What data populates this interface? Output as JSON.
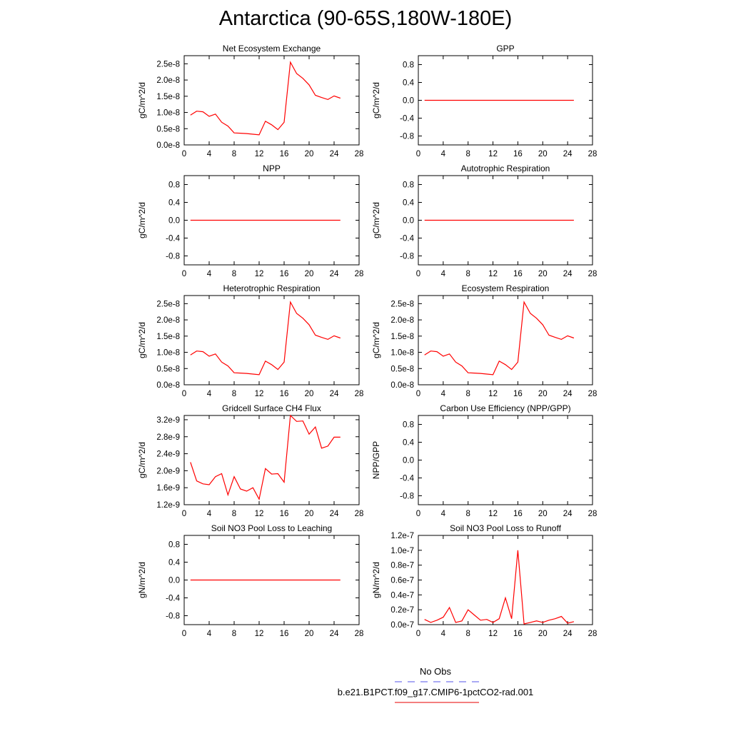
{
  "title": "Antarctica (90-65S,180W-180E)",
  "legend": [
    {
      "label": "No Obs",
      "color": "#7777ee",
      "dash": true
    },
    {
      "label": "b.e21.B1PCT.f09_g17.CMIP6-1pctCO2-rad.001",
      "color": "#ee3333",
      "dash": false
    }
  ],
  "line_color": "#ff0000",
  "chart_data": [
    {
      "type": "line",
      "title": "Net Ecosystem Exchange",
      "ylabel": "gC/m^2/d",
      "xlim": [
        0,
        28
      ],
      "xticks": [
        "0",
        "4",
        "8",
        "12",
        "16",
        "20",
        "24",
        "28"
      ],
      "ylim": [
        0,
        2.75e-08
      ],
      "yticks": [
        0,
        5e-09,
        1e-08,
        1.5e-08,
        2e-08,
        2.5e-08
      ],
      "ytick_labels": [
        "0.0e-8",
        "0.5e-8",
        "1.0e-8",
        "1.5e-8",
        "2.0e-8",
        "2.5e-8"
      ],
      "x": [
        1,
        2,
        3,
        4,
        5,
        6,
        7,
        8,
        9,
        10,
        11,
        12,
        13,
        14,
        15,
        16,
        17,
        18,
        19,
        20,
        21,
        22,
        23,
        24,
        25
      ],
      "y": [
        9.2e-09,
        1.04e-08,
        1.02e-08,
        8.8e-09,
        9.5e-09,
        7e-09,
        5.8e-09,
        3.7e-09,
        3.6e-09,
        3.5e-09,
        3.3e-09,
        3.1e-09,
        7.3e-09,
        6.2e-09,
        4.7e-09,
        7e-09,
        2.55e-08,
        2.2e-08,
        2.05e-08,
        1.85e-08,
        1.53e-08,
        1.46e-08,
        1.4e-08,
        1.51e-08,
        1.44e-08
      ]
    },
    {
      "type": "line",
      "title": "GPP",
      "ylabel": "gC/m^2/d",
      "xlim": [
        0,
        28
      ],
      "xticks": [
        "0",
        "4",
        "8",
        "12",
        "16",
        "20",
        "24",
        "28"
      ],
      "ylim": [
        -1,
        1
      ],
      "yticks": [
        -0.8,
        -0.4,
        0,
        0.4,
        0.8
      ],
      "ytick_labels": [
        "-0.8",
        "-0.4",
        "0.0",
        "0.4",
        "0.8"
      ],
      "x": [
        1,
        25
      ],
      "y": [
        0,
        0
      ]
    },
    {
      "type": "line",
      "title": "NPP",
      "ylabel": "gC/m^2/d",
      "xlim": [
        0,
        28
      ],
      "xticks": [
        "0",
        "4",
        "8",
        "12",
        "16",
        "20",
        "24",
        "28"
      ],
      "ylim": [
        -1,
        1
      ],
      "yticks": [
        -0.8,
        -0.4,
        0,
        0.4,
        0.8
      ],
      "ytick_labels": [
        "-0.8",
        "-0.4",
        "0.0",
        "0.4",
        "0.8"
      ],
      "x": [
        1,
        25
      ],
      "y": [
        0,
        0
      ]
    },
    {
      "type": "line",
      "title": "Autotrophic Respiration",
      "ylabel": "gC/m^2/d",
      "xlim": [
        0,
        28
      ],
      "xticks": [
        "0",
        "4",
        "8",
        "12",
        "16",
        "20",
        "24",
        "28"
      ],
      "ylim": [
        -1,
        1
      ],
      "yticks": [
        -0.8,
        -0.4,
        0,
        0.4,
        0.8
      ],
      "ytick_labels": [
        "-0.8",
        "-0.4",
        "0.0",
        "0.4",
        "0.8"
      ],
      "x": [
        1,
        25
      ],
      "y": [
        0,
        0
      ]
    },
    {
      "type": "line",
      "title": "Heterotrophic Respiration",
      "ylabel": "gC/m^2/d",
      "xlim": [
        0,
        28
      ],
      "xticks": [
        "0",
        "4",
        "8",
        "12",
        "16",
        "20",
        "24",
        "28"
      ],
      "ylim": [
        0,
        2.75e-08
      ],
      "yticks": [
        0,
        5e-09,
        1e-08,
        1.5e-08,
        2e-08,
        2.5e-08
      ],
      "ytick_labels": [
        "0.0e-8",
        "0.5e-8",
        "1.0e-8",
        "1.5e-8",
        "2.0e-8",
        "2.5e-8"
      ],
      "x": [
        1,
        2,
        3,
        4,
        5,
        6,
        7,
        8,
        9,
        10,
        11,
        12,
        13,
        14,
        15,
        16,
        17,
        18,
        19,
        20,
        21,
        22,
        23,
        24,
        25
      ],
      "y": [
        9.2e-09,
        1.04e-08,
        1.02e-08,
        8.8e-09,
        9.5e-09,
        7e-09,
        5.8e-09,
        3.7e-09,
        3.6e-09,
        3.5e-09,
        3.3e-09,
        3.1e-09,
        7.3e-09,
        6.2e-09,
        4.7e-09,
        7e-09,
        2.55e-08,
        2.2e-08,
        2.05e-08,
        1.85e-08,
        1.53e-08,
        1.46e-08,
        1.4e-08,
        1.51e-08,
        1.44e-08
      ]
    },
    {
      "type": "line",
      "title": "Ecosystem Respiration",
      "ylabel": "gC/m^2/d",
      "xlim": [
        0,
        28
      ],
      "xticks": [
        "0",
        "4",
        "8",
        "12",
        "16",
        "20",
        "24",
        "28"
      ],
      "ylim": [
        0,
        2.75e-08
      ],
      "yticks": [
        0,
        5e-09,
        1e-08,
        1.5e-08,
        2e-08,
        2.5e-08
      ],
      "ytick_labels": [
        "0.0e-8",
        "0.5e-8",
        "1.0e-8",
        "1.5e-8",
        "2.0e-8",
        "2.5e-8"
      ],
      "x": [
        1,
        2,
        3,
        4,
        5,
        6,
        7,
        8,
        9,
        10,
        11,
        12,
        13,
        14,
        15,
        16,
        17,
        18,
        19,
        20,
        21,
        22,
        23,
        24,
        25
      ],
      "y": [
        9.2e-09,
        1.04e-08,
        1.02e-08,
        8.8e-09,
        9.5e-09,
        7e-09,
        5.8e-09,
        3.7e-09,
        3.6e-09,
        3.5e-09,
        3.3e-09,
        3.1e-09,
        7.3e-09,
        6.2e-09,
        4.7e-09,
        7e-09,
        2.55e-08,
        2.2e-08,
        2.05e-08,
        1.85e-08,
        1.53e-08,
        1.46e-08,
        1.4e-08,
        1.51e-08,
        1.44e-08
      ]
    },
    {
      "type": "line",
      "title": "Gridcell Surface CH4 Flux",
      "ylabel": "gC/m^2/d",
      "xlim": [
        0,
        28
      ],
      "xticks": [
        "0",
        "4",
        "8",
        "12",
        "16",
        "20",
        "24",
        "28"
      ],
      "ylim": [
        1.2e-09,
        3.3e-09
      ],
      "yticks": [
        1.2e-09,
        1.6e-09,
        2e-09,
        2.4e-09,
        2.8e-09,
        3.2e-09
      ],
      "ytick_labels": [
        "1.2e-9",
        "1.6e-9",
        "2.0e-9",
        "2.4e-9",
        "2.8e-9",
        "3.2e-9"
      ],
      "x": [
        1,
        2,
        3,
        4,
        5,
        6,
        7,
        8,
        9,
        10,
        11,
        12,
        13,
        14,
        15,
        16,
        17,
        18,
        19,
        20,
        21,
        22,
        23,
        24,
        25
      ],
      "y": [
        2.2e-09,
        1.76e-09,
        1.69e-09,
        1.67e-09,
        1.86e-09,
        1.93e-09,
        1.43e-09,
        1.86e-09,
        1.57e-09,
        1.52e-09,
        1.6e-09,
        1.33e-09,
        2.05e-09,
        1.92e-09,
        1.93e-09,
        1.73e-09,
        3.3e-09,
        3.16e-09,
        3.17e-09,
        2.86e-09,
        3.03e-09,
        2.53e-09,
        2.58e-09,
        2.79e-09,
        2.79e-09
      ]
    },
    {
      "type": "line",
      "title": "Carbon Use Efficiency (NPP/GPP)",
      "ylabel": "NPP/GPP",
      "xlim": [
        0,
        28
      ],
      "xticks": [
        "0",
        "4",
        "8",
        "12",
        "16",
        "20",
        "24",
        "28"
      ],
      "ylim": [
        -1,
        1
      ],
      "yticks": [
        -0.8,
        -0.4,
        0,
        0.4,
        0.8
      ],
      "ytick_labels": [
        "-0.8",
        "-0.4",
        "0.0",
        "0.4",
        "0.8"
      ],
      "x": [],
      "y": []
    },
    {
      "type": "line",
      "title": "Soil NO3 Pool Loss to Leaching",
      "ylabel": "gN/m^2/d",
      "xlim": [
        0,
        28
      ],
      "xticks": [
        "0",
        "4",
        "8",
        "12",
        "16",
        "20",
        "24",
        "28"
      ],
      "ylim": [
        -1,
        1
      ],
      "yticks": [
        -0.8,
        -0.4,
        0,
        0.4,
        0.8
      ],
      "ytick_labels": [
        "-0.8",
        "-0.4",
        "0.0",
        "0.4",
        "0.8"
      ],
      "x": [
        1,
        25
      ],
      "y": [
        0,
        0
      ]
    },
    {
      "type": "line",
      "title": "Soil NO3 Pool Loss to Runoff",
      "ylabel": "gN/m^2/d",
      "xlim": [
        0,
        28
      ],
      "xticks": [
        "0",
        "4",
        "8",
        "12",
        "16",
        "20",
        "24",
        "28"
      ],
      "ylim": [
        0,
        1.2e-07
      ],
      "yticks": [
        0,
        2e-08,
        4e-08,
        6e-08,
        8e-08,
        1e-07,
        1.2e-07
      ],
      "ytick_labels": [
        "0.0e-7",
        "0.2e-7",
        "0.4e-7",
        "0.6e-7",
        "0.8e-7",
        "1.0e-7",
        "1.2e-7"
      ],
      "x": [
        1,
        2,
        3,
        4,
        5,
        6,
        7,
        8,
        9,
        10,
        11,
        12,
        13,
        14,
        15,
        16,
        17,
        18,
        19,
        20,
        21,
        22,
        23,
        24,
        25
      ],
      "y": [
        7e-09,
        3e-09,
        6e-09,
        1e-08,
        2.3e-08,
        3e-09,
        5e-09,
        2e-08,
        1.3e-08,
        6e-09,
        7e-09,
        3e-09,
        8e-09,
        3.6e-08,
        8e-09,
        1e-07,
        1e-09,
        3e-09,
        5e-09,
        3e-09,
        6e-09,
        8e-09,
        1.1e-08,
        2e-09,
        4e-09
      ]
    }
  ]
}
